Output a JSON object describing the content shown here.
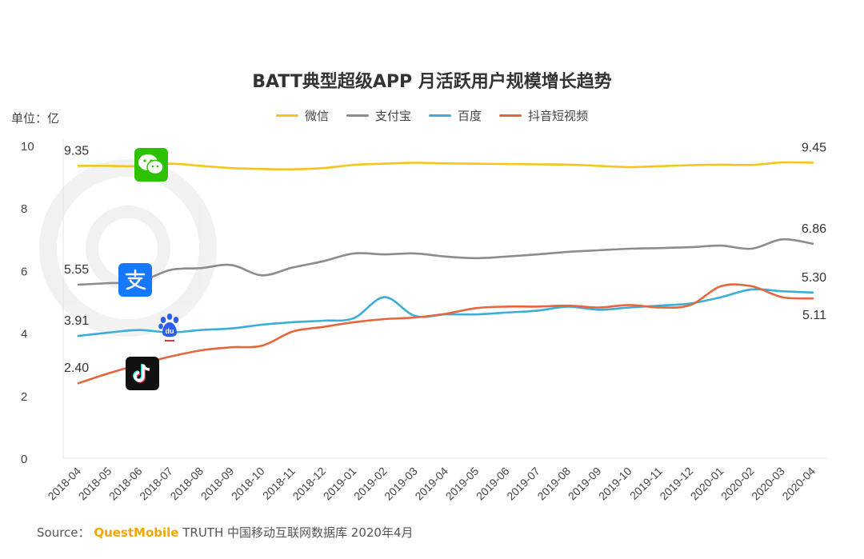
{
  "chart_data": {
    "type": "line",
    "title": "BATT典型超级APP 月活跃用户规模增长趋势",
    "unit_label": "单位：亿",
    "categories": [
      "2018-04",
      "2018-05",
      "2018-06",
      "2018-07",
      "2018-08",
      "2018-09",
      "2018-10",
      "2018-11",
      "2018-12",
      "2019-01",
      "2019-02",
      "2019-03",
      "2019-04",
      "2019-05",
      "2019-06",
      "2019-07",
      "2019-08",
      "2019-09",
      "2019-10",
      "2019-11",
      "2019-12",
      "2020-01",
      "2020-02",
      "2020-03",
      "2020-04"
    ],
    "yticks": [
      "0",
      "2",
      "4",
      "6",
      "8",
      "10"
    ],
    "ylim": [
      0,
      10
    ],
    "grid": false,
    "legend_position": "top-center",
    "series": [
      {
        "name": "微信",
        "color": "#f5c518",
        "values": [
          9.35,
          9.35,
          9.34,
          9.42,
          9.35,
          9.28,
          9.25,
          9.24,
          9.28,
          9.38,
          9.42,
          9.45,
          9.43,
          9.42,
          9.41,
          9.4,
          9.39,
          9.35,
          9.31,
          9.34,
          9.37,
          9.39,
          9.38,
          9.46,
          9.45
        ],
        "start_label": "9.35",
        "end_label": "9.45"
      },
      {
        "name": "支付宝",
        "color": "#8c8c8c",
        "values": [
          5.55,
          5.6,
          5.65,
          6.02,
          6.08,
          6.18,
          5.85,
          6.1,
          6.3,
          6.55,
          6.52,
          6.55,
          6.45,
          6.4,
          6.45,
          6.52,
          6.6,
          6.65,
          6.7,
          6.72,
          6.75,
          6.8,
          6.7,
          7.0,
          6.86
        ],
        "start_label": "5.55",
        "end_label": "6.86"
      },
      {
        "name": "百度",
        "color": "#3aaed8",
        "values": [
          3.91,
          4.02,
          4.1,
          4.02,
          4.1,
          4.15,
          4.27,
          4.35,
          4.4,
          4.48,
          5.15,
          4.55,
          4.6,
          4.6,
          4.66,
          4.72,
          4.85,
          4.75,
          4.82,
          4.88,
          4.95,
          5.15,
          5.4,
          5.34,
          5.3
        ],
        "start_label": "3.91",
        "end_label": "5.30"
      },
      {
        "name": "抖音短视频",
        "color": "#e5663c",
        "values": [
          2.4,
          2.72,
          3.0,
          3.25,
          3.45,
          3.55,
          3.6,
          4.05,
          4.2,
          4.35,
          4.45,
          4.5,
          4.62,
          4.8,
          4.85,
          4.85,
          4.88,
          4.82,
          4.9,
          4.82,
          4.9,
          5.5,
          5.5,
          5.15,
          5.11
        ],
        "start_label": "2.40",
        "end_label": "5.11"
      }
    ]
  },
  "source": {
    "prefix": "Source：",
    "brand": "QuestMobile",
    "text": "TRUTH 中国移动互联网数据库 2020年4月"
  },
  "icons": [
    {
      "name": "wechat-icon",
      "color": "#2dc100"
    },
    {
      "name": "alipay-icon",
      "color": "#1678ff"
    },
    {
      "name": "baidu-icon",
      "color": "#2e5ef0"
    },
    {
      "name": "douyin-icon",
      "color": "#111111"
    }
  ]
}
